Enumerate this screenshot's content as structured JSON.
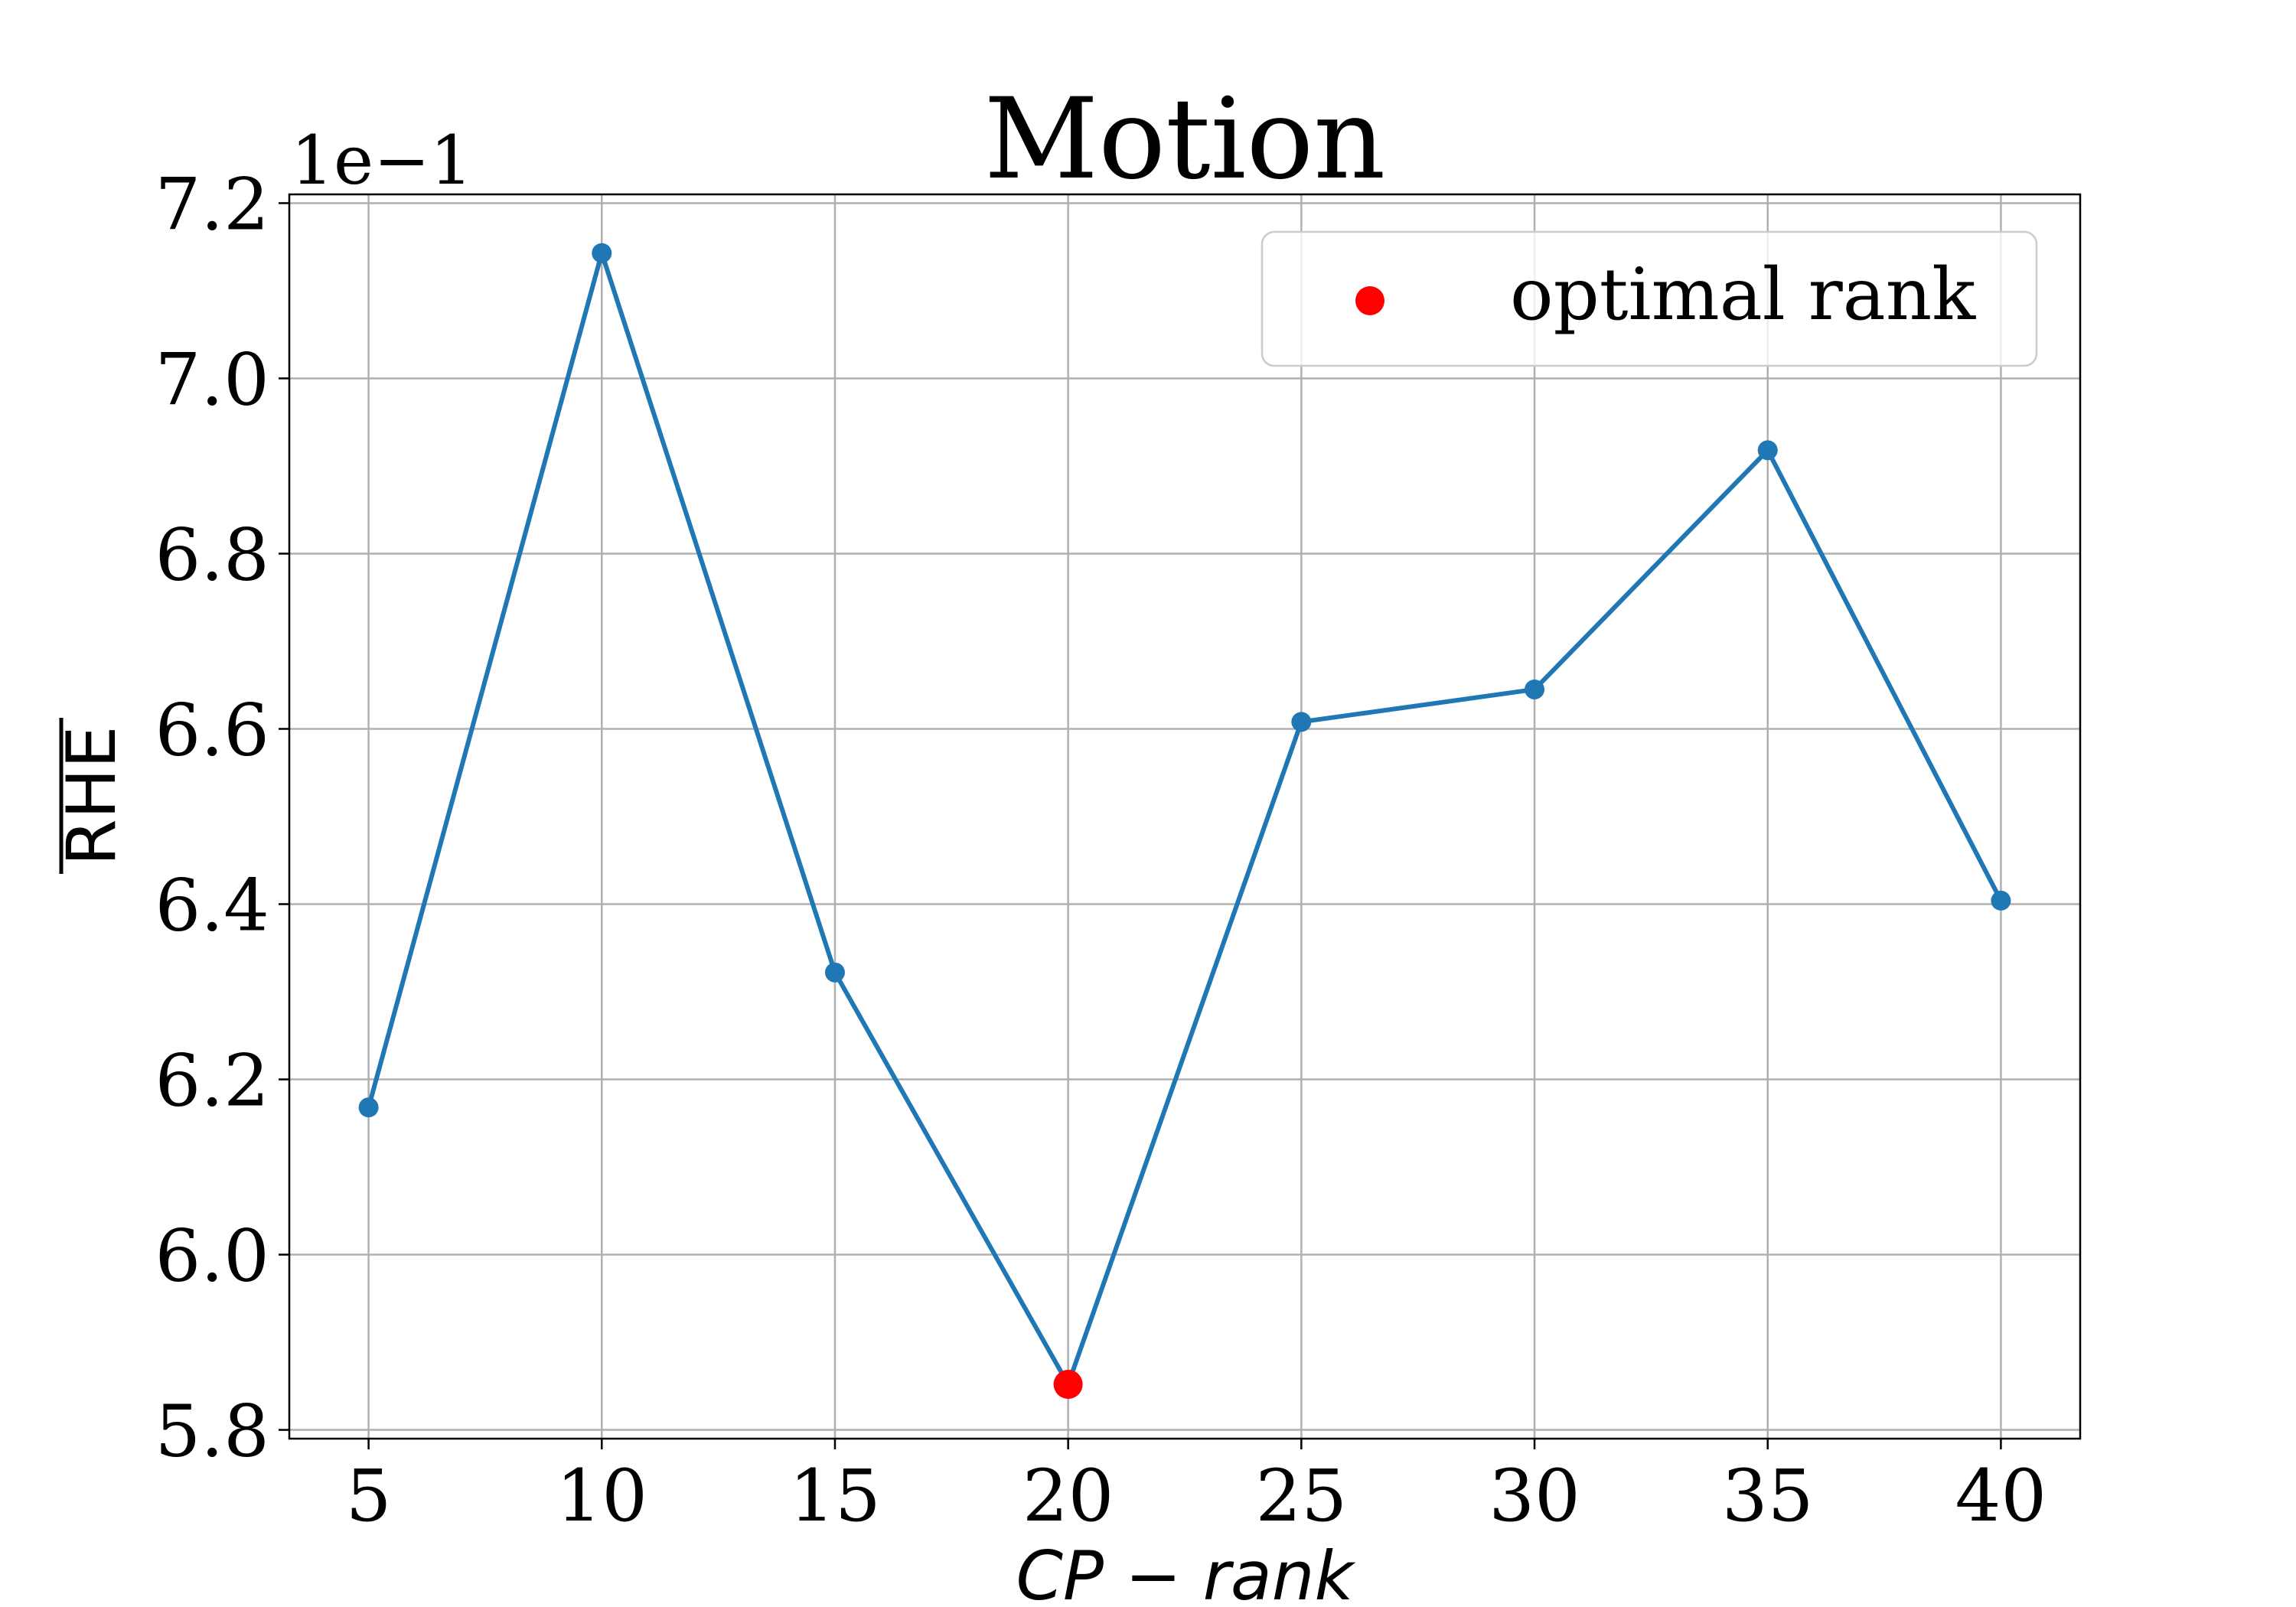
{
  "chart_data": {
    "type": "line",
    "title": "Motion",
    "xlabel": "CP − rank",
    "ylabel": "RHE",
    "y_scale_label": "1e−1",
    "xlim": [
      3.3,
      41.7
    ],
    "ylim": [
      5.79,
      7.21
    ],
    "x_ticks": [
      5,
      10,
      15,
      20,
      25,
      30,
      35,
      40
    ],
    "y_ticks": [
      5.8,
      6.0,
      6.2,
      6.4,
      6.6,
      6.8,
      7.0,
      7.2
    ],
    "y_tick_labels": [
      "5.8",
      "6.0",
      "6.2",
      "6.4",
      "6.6",
      "6.8",
      "7.0",
      "7.2"
    ],
    "grid": true,
    "legend_position": "top-right",
    "series": [
      {
        "x": [
          5,
          10,
          15,
          20,
          25,
          30,
          35,
          40
        ],
        "y": [
          6.168,
          7.143,
          6.322,
          5.852,
          6.608,
          6.645,
          6.918,
          6.404
        ],
        "color": "#1f77b4"
      }
    ],
    "highlight": {
      "name": "optimal rank",
      "x": 20,
      "y": 5.852,
      "color": "#ff0000"
    }
  }
}
